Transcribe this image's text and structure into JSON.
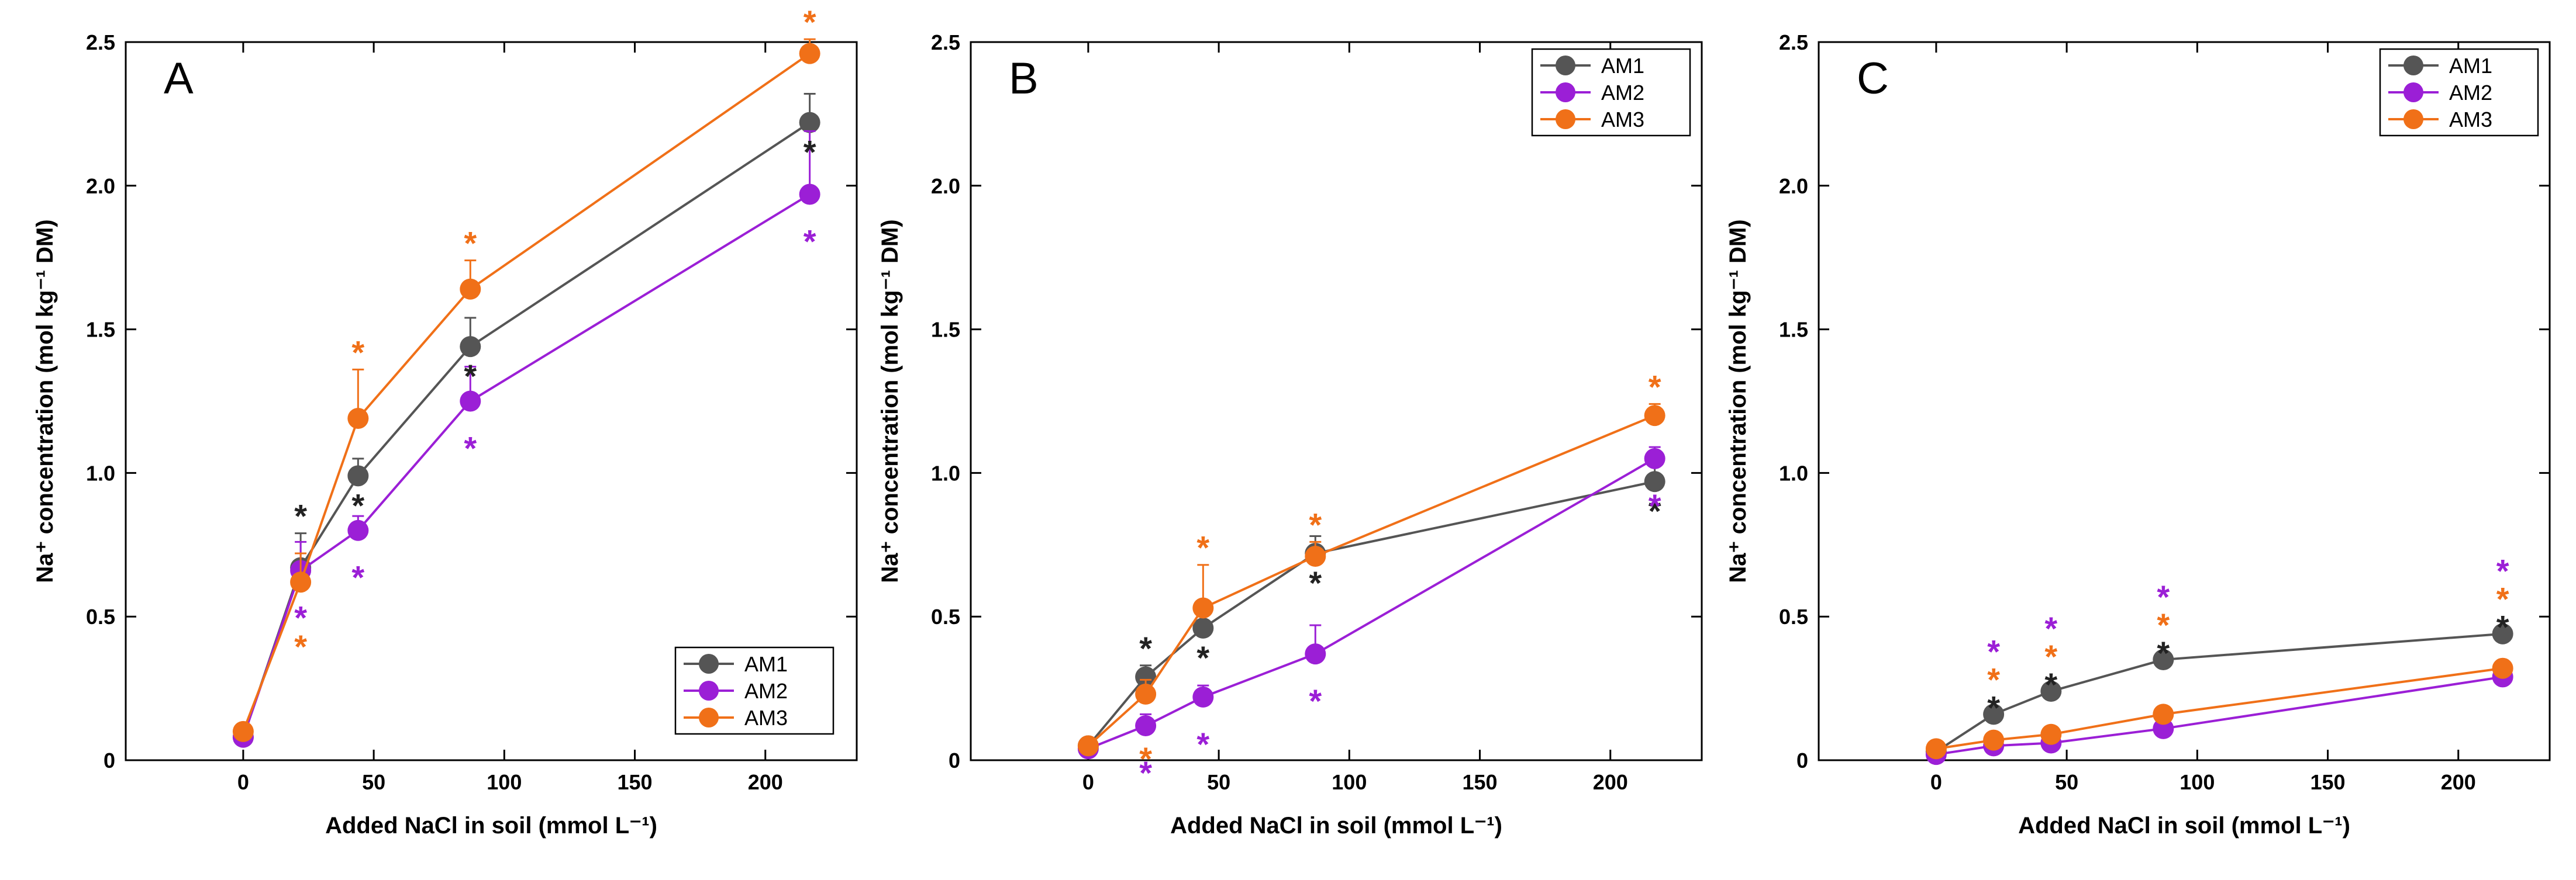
{
  "colors": {
    "AM1": "#555555",
    "AM2": "#9b1fd6",
    "AM3": "#f07018"
  },
  "chart_data": [
    {
      "type": "line",
      "panel_label": "A",
      "xlabel": "Added NaCl in soil (mmol L⁻¹)",
      "ylabel": "Na⁺ concentration (mol kg⁻¹ DM)",
      "xlim": [
        -45,
        235
      ],
      "ylim": [
        0,
        2.5
      ],
      "xticks": [
        0,
        50,
        100,
        150,
        200
      ],
      "yticks": [
        0,
        0.5,
        1.0,
        1.5,
        2.0,
        2.5
      ],
      "ytick_labels": [
        "0",
        "0.5",
        "1.0",
        "1.5",
        "2.0",
        "2.5"
      ],
      "legend_position": "bottom-right",
      "series": [
        {
          "name": "AM1",
          "x": [
            0,
            22,
            44,
            87,
            217
          ],
          "y": [
            0.08,
            0.67,
            0.99,
            1.44,
            2.22
          ],
          "err": [
            0.02,
            0.12,
            0.06,
            0.1,
            0.1
          ],
          "sig": [
            false,
            true,
            true,
            true,
            true
          ]
        },
        {
          "name": "AM2",
          "x": [
            0,
            22,
            44,
            87,
            217
          ],
          "y": [
            0.08,
            0.66,
            0.8,
            1.25,
            1.97
          ],
          "err": [
            0.02,
            0.1,
            0.05,
            0.12,
            0.22
          ],
          "sig": [
            false,
            true,
            true,
            true,
            true
          ]
        },
        {
          "name": "AM3",
          "x": [
            0,
            22,
            44,
            87,
            217
          ],
          "y": [
            0.1,
            0.62,
            1.19,
            1.64,
            2.46
          ],
          "err": [
            0.02,
            0.1,
            0.17,
            0.1,
            0.05
          ],
          "sig": [
            false,
            true,
            true,
            true,
            true
          ]
        }
      ],
      "star_glyph": "*"
    },
    {
      "type": "line",
      "panel_label": "B",
      "xlabel": "Added NaCl in soil (mmol L⁻¹)",
      "ylabel": "Na⁺ concentration (mol kg⁻¹ DM)",
      "xlim": [
        -45,
        235
      ],
      "ylim": [
        0,
        2.5
      ],
      "xticks": [
        0,
        50,
        100,
        150,
        200
      ],
      "yticks": [
        0,
        0.5,
        1.0,
        1.5,
        2.0,
        2.5
      ],
      "ytick_labels": [
        "0",
        "0.5",
        "1.0",
        "1.5",
        "2.0",
        "2.5"
      ],
      "legend_position": "top-right",
      "series": [
        {
          "name": "AM1",
          "x": [
            0,
            22,
            44,
            87,
            217
          ],
          "y": [
            0.05,
            0.29,
            0.46,
            0.72,
            0.97
          ],
          "err": [
            0.01,
            0.04,
            0.07,
            0.06,
            0.06
          ],
          "sig": [
            false,
            true,
            true,
            true,
            true
          ]
        },
        {
          "name": "AM2",
          "x": [
            0,
            22,
            44,
            87,
            217
          ],
          "y": [
            0.04,
            0.12,
            0.22,
            0.37,
            1.05
          ],
          "err": [
            0.01,
            0.04,
            0.04,
            0.1,
            0.04
          ],
          "sig": [
            false,
            true,
            true,
            true,
            true
          ]
        },
        {
          "name": "AM3",
          "x": [
            0,
            22,
            44,
            87,
            217
          ],
          "y": [
            0.05,
            0.23,
            0.53,
            0.71,
            1.2
          ],
          "err": [
            0.01,
            0.05,
            0.15,
            0.05,
            0.04
          ],
          "sig": [
            false,
            true,
            true,
            true,
            true
          ]
        }
      ],
      "star_glyph": "*"
    },
    {
      "type": "line",
      "panel_label": "C",
      "xlabel": "Added NaCl in soil (mmol L⁻¹)",
      "ylabel": "Na⁺ concentration (mol kg⁻¹ DM)",
      "xlim": [
        -45,
        235
      ],
      "ylim": [
        0,
        2.5
      ],
      "xticks": [
        0,
        50,
        100,
        150,
        200
      ],
      "yticks": [
        0,
        0.5,
        1.0,
        1.5,
        2.0,
        2.5
      ],
      "ytick_labels": [
        "0",
        "0.5",
        "1.0",
        "1.5",
        "2.0",
        "2.5"
      ],
      "legend_position": "top-right",
      "series": [
        {
          "name": "AM1",
          "x": [
            0,
            22,
            44,
            87,
            217
          ],
          "y": [
            0.03,
            0.16,
            0.24,
            0.35,
            0.44
          ],
          "err": [
            0.01,
            0.02,
            0.02,
            0.02,
            0.02
          ],
          "sig": [
            false,
            true,
            true,
            true,
            true
          ]
        },
        {
          "name": "AM2",
          "x": [
            0,
            22,
            44,
            87,
            217
          ],
          "y": [
            0.02,
            0.05,
            0.06,
            0.11,
            0.29
          ],
          "err": [
            0.01,
            0.01,
            0.01,
            0.02,
            0.02
          ],
          "sig": [
            false,
            true,
            true,
            true,
            true
          ]
        },
        {
          "name": "AM3",
          "x": [
            0,
            22,
            44,
            87,
            217
          ],
          "y": [
            0.04,
            0.07,
            0.09,
            0.16,
            0.32
          ],
          "err": [
            0.01,
            0.01,
            0.01,
            0.02,
            0.02
          ],
          "sig": [
            false,
            true,
            true,
            true,
            true
          ]
        }
      ],
      "star_glyph": "*"
    }
  ]
}
